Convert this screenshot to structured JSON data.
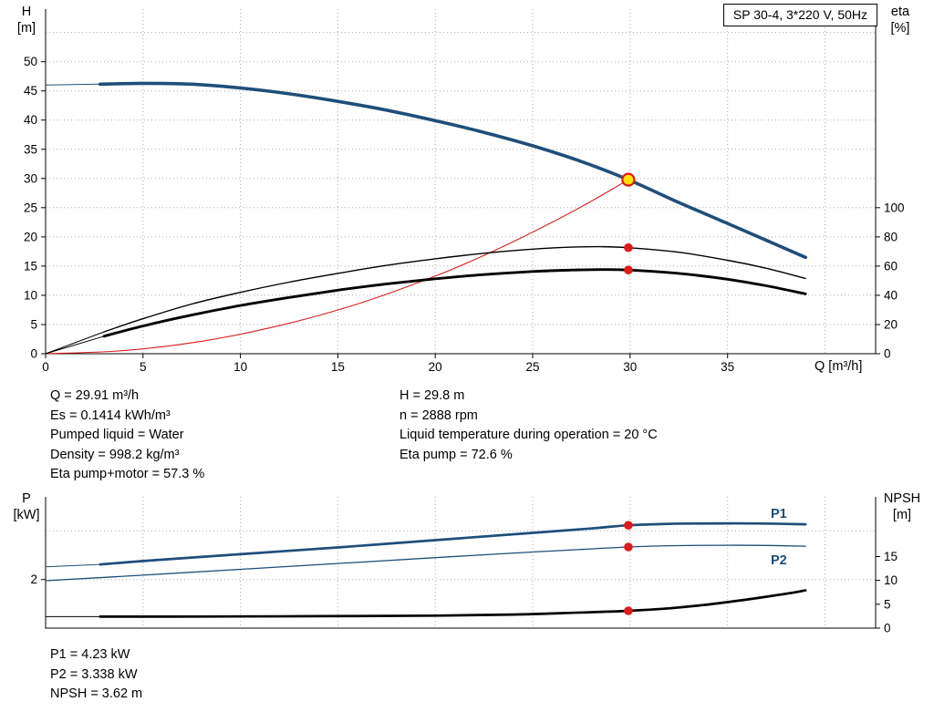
{
  "info_top": {
    "left": [
      "Q = 29.91 m³/h",
      "Es = 0.1414 kWh/m³",
      "Pumped liquid = Water",
      "Density = 998.2 kg/m³",
      "Eta pump+motor = 57.3 %"
    ],
    "right": [
      "H = 29.8 m",
      "n = 2888 rpm",
      "Liquid temperature during operation = 20 °C",
      "Eta pump = 72.6 %"
    ]
  },
  "info_bottom": [
    "P1 = 4.23 kW",
    "P2 = 3.338 kW",
    "NPSH = 3.62 m"
  ],
  "chart_data": [
    {
      "type": "line",
      "title": "SP 30-4, 3*220 V, 50Hz",
      "x_axis": {
        "label": "Q [m³/h]",
        "lim": [
          0,
          42.6
        ],
        "ticks": [
          0,
          5,
          10,
          15,
          20,
          25,
          30,
          35
        ],
        "grid_ticks": [
          5,
          10,
          15,
          20,
          25,
          30,
          35,
          40
        ]
      },
      "y_left": {
        "name": "H",
        "unit": "[m]",
        "label": "H [m]",
        "lim": [
          0,
          59
        ],
        "ticks": [
          0,
          5,
          10,
          15,
          20,
          25,
          30,
          35,
          40,
          45,
          50
        ],
        "grid_ticks": [
          5,
          10,
          15,
          20,
          25,
          30,
          35,
          40,
          45,
          50,
          55
        ]
      },
      "y_right": {
        "name": "eta",
        "unit": "[%]",
        "label": "eta [%]",
        "lim": [
          0,
          236
        ],
        "ticks": [
          0,
          20,
          40,
          60,
          80,
          100
        ]
      },
      "colors": {
        "curve_blue": "#1f4e79",
        "curve_red": "#d62020",
        "curve_black": "#000000",
        "duty_fill": "#ffe400",
        "duty_stroke": "#e01919",
        "dot": "#e01919"
      },
      "series": [
        {
          "id": "H",
          "name": "QH curve",
          "axis": "left",
          "color": "#1f4e79",
          "width": 3.6,
          "lead": [
            [
              0,
              46.0
            ],
            [
              2.8,
              46.15
            ]
          ],
          "points": [
            [
              2.8,
              46.15
            ],
            [
              5,
              46.3
            ],
            [
              7.5,
              46.15
            ],
            [
              10,
              45.5
            ],
            [
              12.5,
              44.5
            ],
            [
              15,
              43.2
            ],
            [
              17.5,
              41.7
            ],
            [
              20,
              39.9
            ],
            [
              22.5,
              37.9
            ],
            [
              25,
              35.6
            ],
            [
              27.5,
              32.9
            ],
            [
              29.91,
              29.8
            ],
            [
              32.5,
              25.9
            ],
            [
              35,
              22.3
            ],
            [
              37,
              19.4
            ],
            [
              39,
              16.5
            ]
          ]
        },
        {
          "id": "system",
          "name": "system curve",
          "axis": "left",
          "color": "#d62020",
          "width": 1.1,
          "points": [
            [
              0,
              0
            ],
            [
              4,
              0.53
            ],
            [
              8,
              2.13
            ],
            [
              12,
              4.8
            ],
            [
              16,
              8.5
            ],
            [
              20,
              13.3
            ],
            [
              23,
              17.6
            ],
            [
              26,
              22.5
            ],
            [
              28,
              26.1
            ],
            [
              29.91,
              29.8
            ]
          ]
        },
        {
          "id": "eta-pump",
          "name": "eta pump",
          "axis": "right",
          "color": "#000000",
          "width": 1.4,
          "lead": [
            [
              0,
              0
            ],
            [
              3,
              15
            ]
          ],
          "points": [
            [
              3,
              15
            ],
            [
              5,
              24
            ],
            [
              7.5,
              34
            ],
            [
              10,
              42
            ],
            [
              12.5,
              49
            ],
            [
              15,
              55
            ],
            [
              17.5,
              60.5
            ],
            [
              20,
              65
            ],
            [
              22.5,
              68.8
            ],
            [
              25,
              71.6
            ],
            [
              27,
              73
            ],
            [
              28.5,
              73.3
            ],
            [
              29.91,
              72.6
            ],
            [
              32.5,
              69.5
            ],
            [
              35,
              64
            ],
            [
              37,
              58.5
            ],
            [
              39,
              51.5
            ]
          ]
        },
        {
          "id": "eta-pump-motor",
          "name": "eta pump+motor",
          "axis": "right",
          "color": "#000000",
          "width": 2.9,
          "lead": [
            [
              0,
              0
            ],
            [
              3,
              12
            ]
          ],
          "points": [
            [
              3,
              12
            ],
            [
              5,
              19
            ],
            [
              7.5,
              26.5
            ],
            [
              10,
              33
            ],
            [
              12.5,
              38.5
            ],
            [
              15,
              43.5
            ],
            [
              17.5,
              47.8
            ],
            [
              20,
              51.3
            ],
            [
              22.5,
              54.2
            ],
            [
              25,
              56.3
            ],
            [
              27,
              57.3
            ],
            [
              28.5,
              57.6
            ],
            [
              29.91,
              57.3
            ],
            [
              32.5,
              55
            ],
            [
              35,
              51
            ],
            [
              37,
              46.5
            ],
            [
              39,
              41
            ]
          ]
        }
      ],
      "markers": [
        {
          "x": 29.91,
          "y": 29.8,
          "axis": "left",
          "style": "duty"
        },
        {
          "x": 29.91,
          "y": 72.6,
          "axis": "right",
          "style": "dot"
        },
        {
          "x": 29.91,
          "y": 57.3,
          "axis": "right",
          "style": "dot"
        }
      ]
    },
    {
      "type": "line",
      "title": "",
      "x_axis": {
        "label": "",
        "lim": [
          0,
          42.6
        ],
        "ticks": [],
        "grid_ticks": [
          5,
          10,
          15,
          20,
          25,
          30,
          35,
          40
        ]
      },
      "y_left": {
        "name": "P",
        "unit": "[kW]",
        "label": "P [kW]",
        "lim": [
          0,
          5.4
        ],
        "ticks": [
          2
        ],
        "grid_ticks": [
          2,
          4
        ]
      },
      "y_right": {
        "name": "NPSH",
        "unit": "[m]",
        "label": "NPSH [m]",
        "lim": [
          0,
          27.5
        ],
        "ticks": [
          0,
          5,
          10,
          15
        ]
      },
      "colors": {
        "curve_blue": "#1f4e79",
        "curve_black": "#000000",
        "duty_fill": "#ffe400",
        "duty_stroke": "#e01919",
        "dot": "#e01919"
      },
      "series": [
        {
          "id": "P1",
          "name": "P1",
          "axis": "left",
          "color": "#1f4e79",
          "width": 2.7,
          "lead": [
            [
              0,
              2.52
            ],
            [
              2.8,
              2.62
            ]
          ],
          "points": [
            [
              2.8,
              2.62
            ],
            [
              5,
              2.76
            ],
            [
              10,
              3.04
            ],
            [
              15,
              3.32
            ],
            [
              20,
              3.62
            ],
            [
              25,
              3.92
            ],
            [
              28,
              4.1
            ],
            [
              29.91,
              4.23
            ],
            [
              32,
              4.29
            ],
            [
              35,
              4.31
            ],
            [
              37,
              4.3
            ],
            [
              39,
              4.27
            ]
          ]
        },
        {
          "id": "P2",
          "name": "P2",
          "axis": "left",
          "color": "#1f4e79",
          "width": 1.3,
          "points": [
            [
              0,
              1.95
            ],
            [
              5,
              2.18
            ],
            [
              10,
              2.42
            ],
            [
              15,
              2.66
            ],
            [
              20,
              2.9
            ],
            [
              25,
              3.13
            ],
            [
              28,
              3.26
            ],
            [
              29.91,
              3.338
            ],
            [
              32,
              3.39
            ],
            [
              35,
              3.41
            ],
            [
              37,
              3.4
            ],
            [
              39,
              3.37
            ]
          ]
        },
        {
          "id": "NPSH",
          "name": "NPSH",
          "axis": "right",
          "color": "#000000",
          "width": 2.7,
          "lead": [
            [
              0,
              2.4
            ],
            [
              2.8,
              2.4
            ]
          ],
          "points": [
            [
              2.8,
              2.4
            ],
            [
              8,
              2.42
            ],
            [
              14,
              2.5
            ],
            [
              20,
              2.62
            ],
            [
              24,
              2.85
            ],
            [
              27,
              3.2
            ],
            [
              29.91,
              3.62
            ],
            [
              32,
              4.15
            ],
            [
              34,
              4.95
            ],
            [
              36,
              6.0
            ],
            [
              38,
              7.2
            ],
            [
              39,
              7.9
            ]
          ]
        }
      ],
      "markers": [
        {
          "x": 29.91,
          "y": 4.23,
          "axis": "left",
          "style": "dot"
        },
        {
          "x": 29.91,
          "y": 3.338,
          "axis": "left",
          "style": "dot"
        },
        {
          "x": 29.91,
          "y": 3.62,
          "axis": "right",
          "style": "dot"
        }
      ]
    }
  ]
}
